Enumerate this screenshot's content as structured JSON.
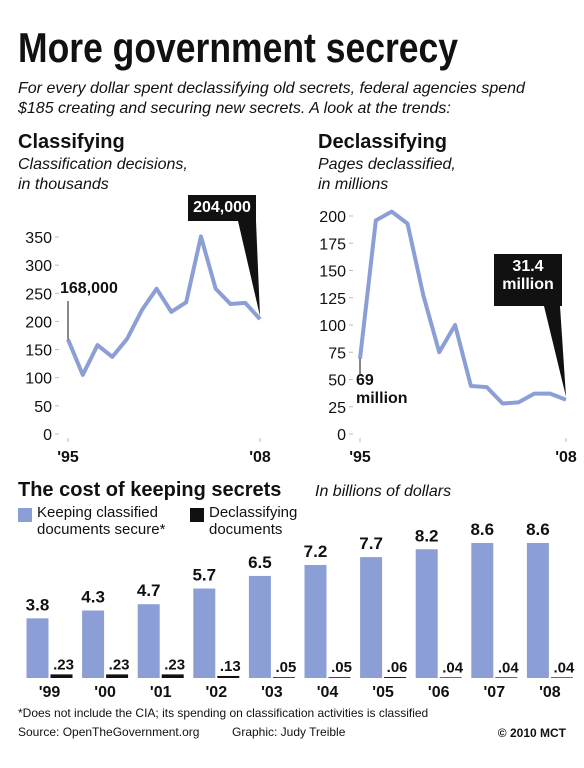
{
  "title": "More government secrecy",
  "subtitle": [
    "For every dollar spent declassifying old secrets, federal agencies spend",
    "$185 creating and securing new secrets. A look at the trends:"
  ],
  "chart_data": [
    {
      "type": "line",
      "title": "Classifying",
      "subtitle": [
        "Classification decisions,",
        "in thousands"
      ],
      "x": [
        1995,
        1996,
        1997,
        1998,
        1999,
        2000,
        2001,
        2002,
        2003,
        2004,
        2005,
        2006,
        2007,
        2008
      ],
      "values": [
        168,
        105,
        158,
        137,
        169,
        220,
        258,
        217,
        234,
        351,
        258,
        231,
        233,
        204
      ],
      "value_labels": [
        "168,000",
        null,
        null,
        null,
        null,
        null,
        null,
        null,
        null,
        null,
        null,
        null,
        null,
        "204,000"
      ],
      "color": "#8b9fd6",
      "xlim": [
        1995,
        2008
      ],
      "xticks": [
        {
          "value": 1995,
          "label": "'95"
        },
        {
          "value": 2008,
          "label": "'08"
        }
      ],
      "ylim": [
        0,
        350
      ],
      "yticks": [
        0,
        50,
        100,
        150,
        200,
        250,
        300,
        350
      ]
    },
    {
      "type": "line",
      "title": "Declassifying",
      "subtitle": [
        "Pages declassified,",
        "in millions"
      ],
      "x": [
        1995,
        1996,
        1997,
        1998,
        1999,
        2000,
        2001,
        2002,
        2003,
        2004,
        2005,
        2006,
        2007,
        2008
      ],
      "values": [
        69,
        196,
        204,
        193,
        127,
        75,
        100,
        44,
        43,
        28,
        29,
        37,
        37,
        31.4
      ],
      "value_labels": [
        "69 million",
        null,
        null,
        null,
        null,
        null,
        null,
        null,
        null,
        null,
        null,
        null,
        null,
        "31.4 million"
      ],
      "color": "#8b9fd6",
      "xlim": [
        1995,
        2008
      ],
      "xticks": [
        {
          "value": 1995,
          "label": "'95"
        },
        {
          "value": 2008,
          "label": "'08"
        }
      ],
      "ylim": [
        0,
        200
      ],
      "yticks": [
        0,
        25,
        50,
        75,
        100,
        125,
        150,
        175,
        200
      ]
    },
    {
      "type": "bar",
      "title": "The cost of keeping secrets",
      "subtitle": "In billions of dollars",
      "categories": [
        "'99",
        "'00",
        "'01",
        "'02",
        "'03",
        "'04",
        "'05",
        "'06",
        "'07",
        "'08"
      ],
      "series": [
        {
          "name": "Keeping classified documents secure*",
          "color": "#8b9fd6",
          "values": [
            3.8,
            4.3,
            4.7,
            5.7,
            6.5,
            7.2,
            7.7,
            8.2,
            8.6,
            8.6
          ]
        },
        {
          "name": "Declassifying documents",
          "color": "#111111",
          "values": [
            0.23,
            0.23,
            0.23,
            0.13,
            0.05,
            0.05,
            0.06,
            0.04,
            0.04,
            0.04
          ],
          "value_labels": [
            ".23",
            ".23",
            ".23",
            ".13",
            ".05",
            ".05",
            ".06",
            ".04",
            ".04",
            ".04"
          ]
        }
      ]
    }
  ],
  "footer": {
    "note": "*Does not include the CIA; its spending on classification activities is classified",
    "source": "Source: OpenTheGovernment.org",
    "credit": "Graphic: Judy Treible",
    "copyright": "© 2010 MCT"
  }
}
